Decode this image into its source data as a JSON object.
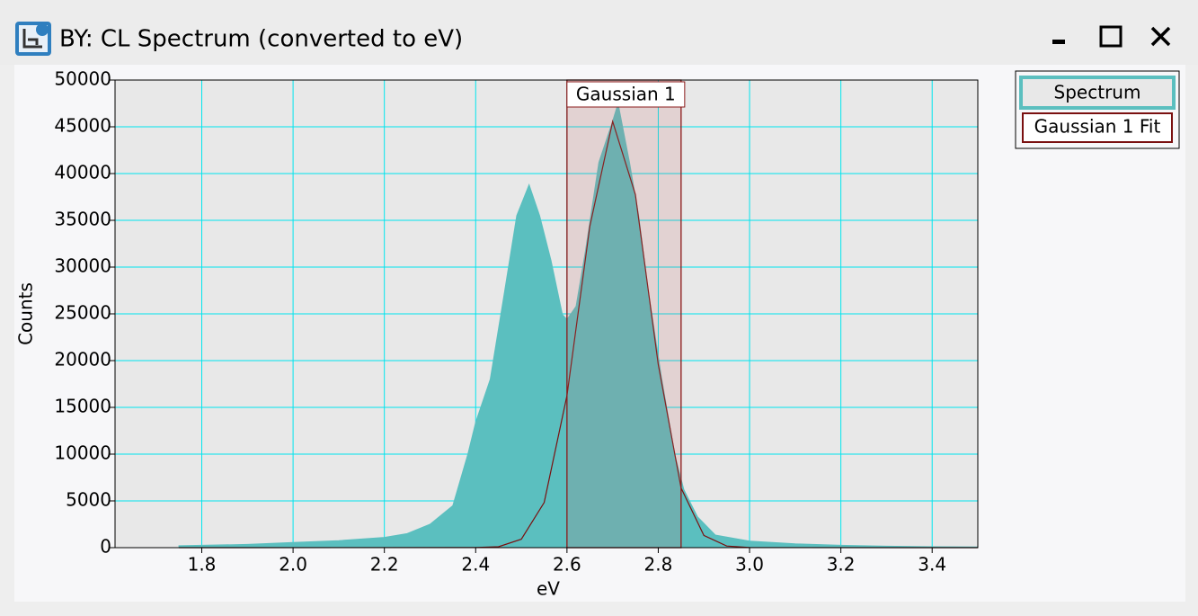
{
  "window_title": "BY: CL Spectrum (converted to eV)",
  "chart_data": {
    "type": "area",
    "x_label": "eV",
    "y_label": "Counts",
    "xlim": [
      1.61,
      3.5
    ],
    "ylim": [
      0,
      50000
    ],
    "xticks": [
      1.8,
      {
        "value": 2,
        "label": "2.0"
      },
      2.2,
      2.4,
      2.6,
      2.8,
      {
        "value": 3,
        "label": "3.0"
      },
      3.2,
      3.4
    ],
    "yticks": [
      0,
      5000,
      10000,
      15000,
      20000,
      25000,
      30000,
      35000,
      40000,
      45000,
      50000
    ],
    "grid": true,
    "legend": "top-right",
    "fit_region": {
      "label": "Gaussian 1",
      "range": [
        2.6,
        2.85
      ],
      "color": "#8b1a1a"
    },
    "series": [
      {
        "name": "Spectrum",
        "color": "#5bbfbf",
        "x": [
          1.75,
          1.8,
          1.9,
          2.0,
          2.1,
          2.2,
          2.25,
          2.3,
          2.35,
          2.383,
          2.4,
          2.432,
          2.462,
          2.49,
          2.517,
          2.54,
          2.565,
          2.59,
          2.6,
          2.62,
          2.64,
          2.67,
          2.7,
          2.712,
          2.737,
          2.757,
          2.777,
          2.807,
          2.836,
          2.856,
          2.886,
          2.925,
          3.0,
          3.1,
          3.2,
          3.3,
          3.4,
          3.5
        ],
        "values": [
          200,
          250,
          350,
          550,
          750,
          1100,
          1500,
          2500,
          4500,
          10000,
          13400,
          18000,
          27000,
          35500,
          38800,
          35500,
          30700,
          24900,
          24400,
          25800,
          31600,
          41200,
          45600,
          47500,
          41200,
          35500,
          27800,
          18200,
          10000,
          6200,
          3300,
          1350,
          700,
          400,
          250,
          150,
          100,
          80
        ]
      },
      {
        "name": "Gaussian 1 Fit",
        "color": "#7a1010",
        "x": [
          1.75,
          2.4,
          2.45,
          2.5,
          2.55,
          2.6,
          2.65,
          2.7,
          2.75,
          2.8,
          2.85,
          2.9,
          2.95,
          3.0,
          3.5
        ],
        "values": [
          0,
          10,
          100,
          900,
          4830,
          16280,
          34370,
          45570,
          37750,
          19620,
          6380,
          1310,
          170,
          10,
          0
        ]
      }
    ]
  }
}
